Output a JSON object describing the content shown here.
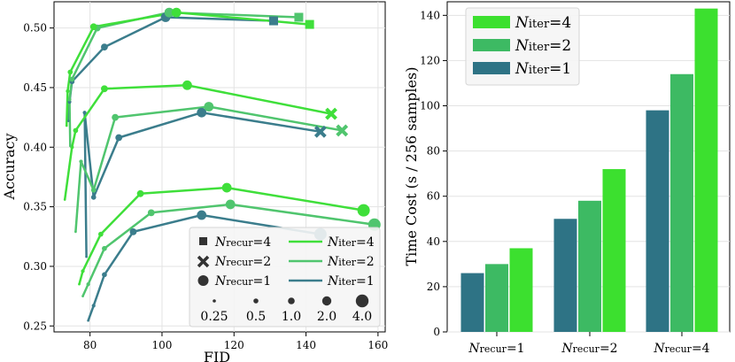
{
  "chart_data": [
    {
      "type": "line",
      "xlabel": "FID",
      "ylabel": "Accuracy",
      "xlim": [
        70,
        162
      ],
      "ylim": [
        0.245,
        0.522
      ],
      "xticks": [
        80,
        100,
        120,
        140,
        160
      ],
      "yticks": [
        0.25,
        0.3,
        0.35,
        0.4,
        0.45,
        0.5
      ],
      "ytick_labels": [
        "0.25",
        "0.30",
        "0.35",
        "0.40",
        "0.45",
        "0.50"
      ],
      "grid": true,
      "colors": {
        "iter4": "#3fdf3a",
        "iter2": "#50c56e",
        "iter1": "#3b7d8c"
      },
      "series": [
        {
          "name": "Nrecur=1, Niter=1",
          "recur": 1,
          "iter": 1,
          "x": [
            79.5,
            81,
            84,
            92,
            111,
            144
          ],
          "y": [
            0.2545,
            0.267,
            0.293,
            0.329,
            0.343,
            0.327
          ]
        },
        {
          "name": "Nrecur=1, Niter=2",
          "recur": 1,
          "iter": 2,
          "x": [
            78,
            79.5,
            84,
            97,
            119,
            159
          ],
          "y": [
            0.275,
            0.285,
            0.315,
            0.345,
            0.352,
            0.335
          ]
        },
        {
          "name": "Nrecur=1, Niter=4",
          "recur": 1,
          "iter": 4,
          "x": [
            77,
            78,
            83,
            94,
            118,
            156
          ],
          "y": [
            0.285,
            0.296,
            0.327,
            0.361,
            0.366,
            0.347
          ]
        },
        {
          "name": "Nrecur=2, Niter=1",
          "recur": 2,
          "iter": 1,
          "x": [
            79,
            78.5,
            81,
            88,
            111,
            144
          ],
          "y": [
            0.308,
            0.429,
            0.358,
            0.408,
            0.429,
            0.413
          ]
        },
        {
          "name": "Nrecur=2, Niter=2",
          "recur": 2,
          "iter": 2,
          "x": [
            76,
            77.5,
            81,
            87,
            113,
            150
          ],
          "y": [
            0.329,
            0.388,
            0.364,
            0.425,
            0.434,
            0.414
          ]
        },
        {
          "name": "Nrecur=2, Niter=4",
          "recur": 2,
          "iter": 4,
          "x": [
            73,
            75,
            76,
            84,
            107,
            147
          ],
          "y": [
            0.356,
            0.4,
            0.414,
            0.449,
            0.452,
            0.428
          ]
        },
        {
          "name": "Nrecur=4, Niter=1",
          "recur": 4,
          "iter": 1,
          "x": [
            74,
            74.3,
            75,
            84,
            101,
            131
          ],
          "y": [
            0.422,
            0.438,
            0.455,
            0.484,
            0.509,
            0.506
          ]
        },
        {
          "name": "Nrecur=4, Niter=2",
          "recur": 4,
          "iter": 2,
          "x": [
            74.5,
            74.3,
            75,
            82,
            102,
            138
          ],
          "y": [
            0.401,
            0.44,
            0.457,
            0.5,
            0.513,
            0.509
          ]
        },
        {
          "name": "Nrecur=4, Niter=4",
          "recur": 4,
          "iter": 4,
          "x": [
            73.5,
            73.8,
            74.5,
            81,
            104,
            141
          ],
          "y": [
            0.418,
            0.447,
            0.463,
            0.501,
            0.513,
            0.503
          ]
        }
      ],
      "legend": {
        "location": "bottom-right",
        "marker_entries": [
          {
            "marker": "square",
            "label": "=4"
          },
          {
            "marker": "cross",
            "label": "=2"
          },
          {
            "marker": "circle",
            "label": "=1"
          }
        ],
        "line_entries": [
          {
            "color_key": "iter4",
            "label": "=4"
          },
          {
            "color_key": "iter2",
            "label": "=2"
          },
          {
            "color_key": "iter1",
            "label": "=1"
          }
        ],
        "size_labels": [
          "0.25",
          "0.5",
          "1.0",
          "2.0",
          "4.0"
        ],
        "n_symbol": "N",
        "recur_sub": "recur",
        "iter_sub": "iter"
      }
    },
    {
      "type": "bar",
      "ylabel": "Time Cost (s / 256 samples)",
      "ylim": [
        0,
        146
      ],
      "yticks": [
        0,
        20,
        40,
        60,
        80,
        100,
        120,
        140
      ],
      "grid": true,
      "category_values": [
        "=1",
        "=2",
        "=4"
      ],
      "category_symbol": "N",
      "category_sub": "recur",
      "series": [
        {
          "name": "Niter=1",
          "value_label": "=1",
          "color": "#2e7385",
          "values": [
            26,
            50,
            98
          ]
        },
        {
          "name": "Niter=2",
          "value_label": "=2",
          "color": "#3dba63",
          "values": [
            30,
            58,
            114
          ]
        },
        {
          "name": "Niter=4",
          "value_label": "=4",
          "color": "#3ce02f",
          "values": [
            37,
            72,
            143
          ]
        }
      ],
      "legend": {
        "location": "top-left",
        "n_symbol": "N",
        "iter_sub": "iter",
        "order": [
          2,
          1,
          0
        ]
      }
    }
  ]
}
